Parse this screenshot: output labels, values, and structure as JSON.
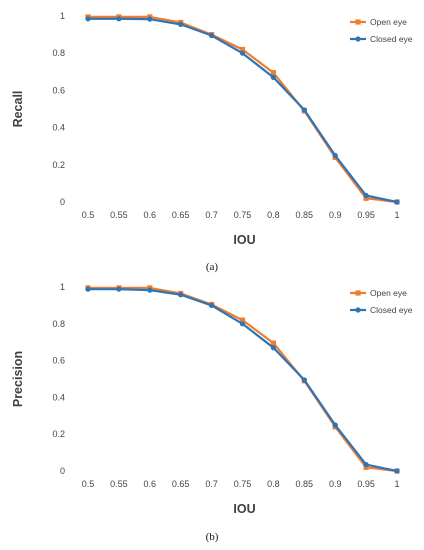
{
  "chart_data": [
    {
      "type": "line",
      "caption": "(a)",
      "xlabel": "IOU",
      "ylabel": "Recall",
      "x": [
        "0.5",
        "0.55",
        "0.6",
        "0.65",
        "0.7",
        "0.75",
        "0.8",
        "0.85",
        "0.9",
        "0.95",
        "1"
      ],
      "yticks": [
        "0",
        "0.2",
        "0.4",
        "0.6",
        "0.8",
        "1"
      ],
      "ylim": [
        0,
        1
      ],
      "grid": false,
      "legend": "top-right",
      "series": [
        {
          "name": "Open eye",
          "color": "#ED7D31",
          "marker": "square",
          "values": [
            0.995,
            0.995,
            0.995,
            0.965,
            0.9,
            0.82,
            0.695,
            0.49,
            0.24,
            0.02,
            0.0
          ]
        },
        {
          "name": "Closed eye",
          "color": "#2E75B6",
          "marker": "circle",
          "values": [
            0.985,
            0.985,
            0.983,
            0.955,
            0.895,
            0.8,
            0.67,
            0.495,
            0.25,
            0.035,
            0.0
          ]
        }
      ]
    },
    {
      "type": "line",
      "caption": "(b)",
      "xlabel": "IOU",
      "ylabel": "Precision",
      "x": [
        "0.5",
        "0.55",
        "0.6",
        "0.65",
        "0.7",
        "0.75",
        "0.8",
        "0.85",
        "0.9",
        "0.95",
        "1"
      ],
      "yticks": [
        "0",
        "0.2",
        "0.4",
        "0.6",
        "0.8",
        "1"
      ],
      "ylim": [
        0,
        1
      ],
      "grid": false,
      "legend": "top-right",
      "series": [
        {
          "name": "Open eye",
          "color": "#ED7D31",
          "marker": "square",
          "values": [
            0.995,
            0.995,
            0.995,
            0.965,
            0.905,
            0.82,
            0.695,
            0.49,
            0.24,
            0.02,
            0.0
          ]
        },
        {
          "name": "Closed eye",
          "color": "#2E75B6",
          "marker": "circle",
          "values": [
            0.988,
            0.988,
            0.983,
            0.958,
            0.9,
            0.8,
            0.67,
            0.495,
            0.25,
            0.035,
            0.0
          ]
        }
      ]
    }
  ]
}
